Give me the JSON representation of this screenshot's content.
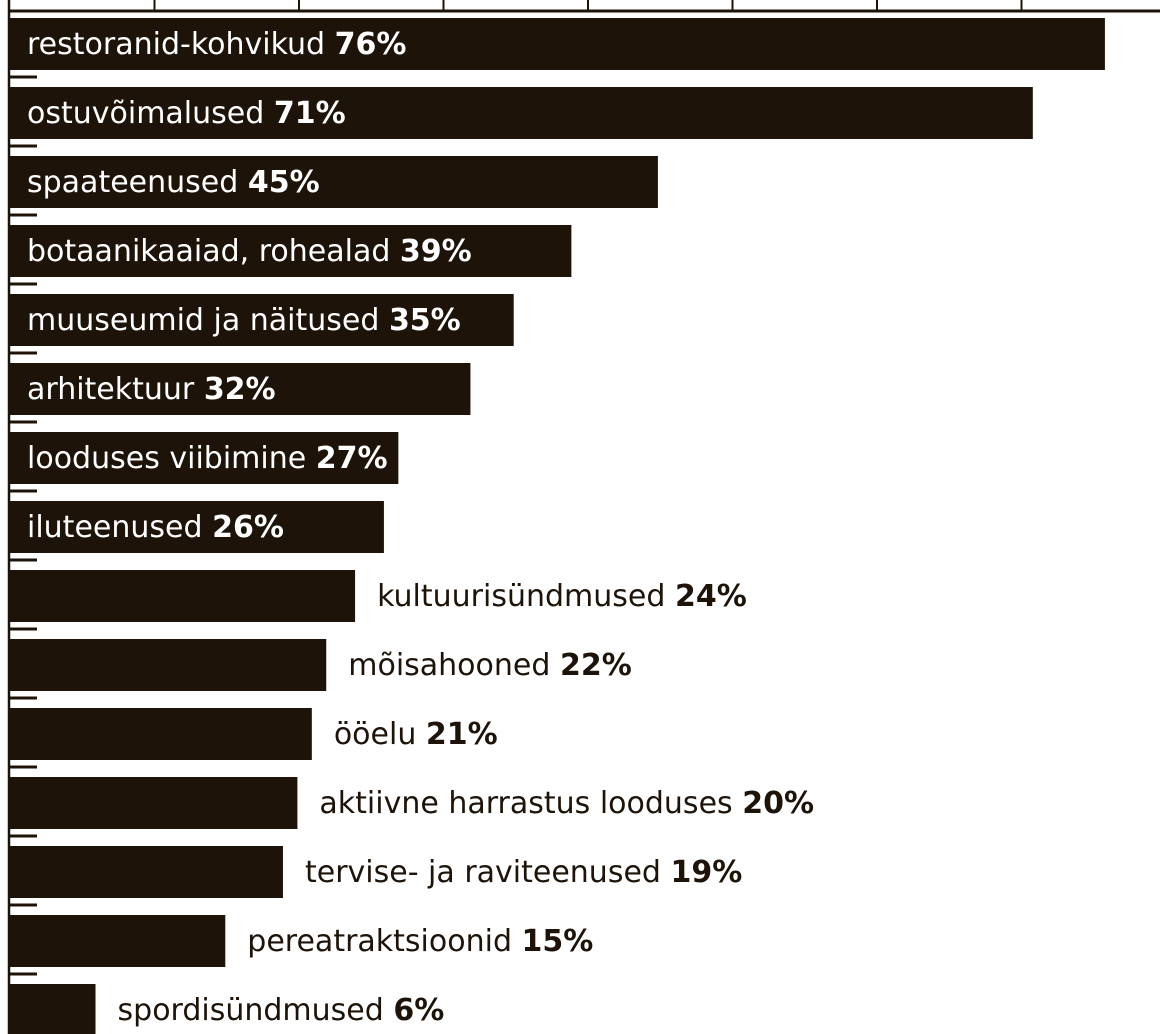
{
  "chart_data": {
    "type": "bar",
    "orientation": "horizontal",
    "title": "",
    "xlabel": "",
    "ylabel": "",
    "xlim": [
      0,
      80
    ],
    "grid": false,
    "legend": "none",
    "categories": [
      "restoranid-kohvikud",
      "ostuvõimalused",
      "spaateenused",
      "botaanikaaiad, rohealad",
      "muuseumid ja näitused",
      "arhitektuur",
      "looduses viibimine",
      "iluteenused",
      "kultuurisündmused",
      "mõisahooned",
      "ööelu",
      "aktiivne harrastus looduses",
      "tervise- ja raviteenused",
      "pereatraktsioonid",
      "spordisündmused"
    ],
    "values": [
      76,
      71,
      45,
      39,
      35,
      32,
      27,
      26,
      24,
      22,
      21,
      20,
      19,
      15,
      6
    ],
    "value_labels": [
      "76%",
      "71%",
      "45%",
      "39%",
      "35%",
      "32%",
      "27%",
      "26%",
      "24%",
      "22%",
      "21%",
      "20%",
      "19%",
      "15%",
      "6%"
    ],
    "label_inside_bar_count": 8,
    "colors": {
      "bar": "#1e1308",
      "label_inside": "#ffffff",
      "label_outside": "#1e1308",
      "axis": "#1e1308",
      "background": "#ffffff"
    }
  }
}
